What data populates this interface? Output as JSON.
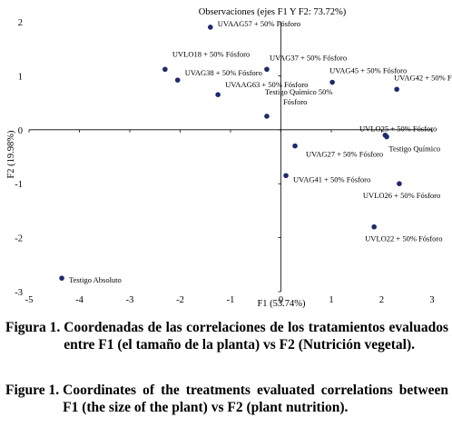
{
  "chart_data": {
    "type": "scatter",
    "title": "Observaciones (ejes F1 Y F2: 73.72%)",
    "xlabel": "F1 (53.74%)",
    "ylabel": "F2 (19.98%)",
    "xlim": [
      -5,
      3
    ],
    "ylim": [
      -3,
      2
    ],
    "xticks": [
      -5,
      -4,
      -3,
      -2,
      -1,
      0,
      1,
      2,
      3
    ],
    "yticks": [
      -3,
      -2,
      -1,
      0,
      1,
      2
    ],
    "xtick_labels": [
      "-5",
      "-4",
      "-3",
      "-2",
      "-1",
      "0",
      "1",
      "2",
      "3"
    ],
    "ytick_labels": [
      "-3",
      "-2",
      "-1",
      "0",
      "1",
      "2"
    ],
    "grid": false,
    "marker_color": "#1f2a6b",
    "points": [
      {
        "label": "UVAAG57 + 50% Fósforo",
        "x": -1.4,
        "y": 1.9
      },
      {
        "label": "UVLO18 + 50% Fósforo",
        "x": -2.3,
        "y": 1.12
      },
      {
        "label": "UVAG37 + 50% Fósforo",
        "x": -0.28,
        "y": 1.12
      },
      {
        "label": "UVAG38 + 50% Fósforo",
        "x": -2.05,
        "y": 0.92
      },
      {
        "label": "UVAAG63 + 50% Fósforo",
        "x": -1.25,
        "y": 0.65
      },
      {
        "label": "UVAG45 + 50% Fósforo",
        "x": 1.02,
        "y": 0.88
      },
      {
        "label": "UVAG42 + 50% Fósforo",
        "x": 2.3,
        "y": 0.75
      },
      {
        "label": "Testigo Químico 50% Fósforo",
        "x": -0.28,
        "y": 0.25
      },
      {
        "label": "UVLO25 + 50% Fósforo",
        "x": 2.1,
        "y": -0.13
      },
      {
        "label": "Testigo Químico",
        "x": 2.07,
        "y": -0.1
      },
      {
        "label": "UVAG27 + 50% Fósforo",
        "x": 0.28,
        "y": -0.3
      },
      {
        "label": "UVAG41 + 50% Fósforo",
        "x": 0.1,
        "y": -0.85
      },
      {
        "label": "UVLO26 + 50% Fósforo",
        "x": 2.35,
        "y": -1.0
      },
      {
        "label": "UVLO22 + 50% Fósforo",
        "x": 1.85,
        "y": -1.8
      },
      {
        "label": "Testigo Absoluto",
        "x": -4.35,
        "y": -2.75
      }
    ]
  },
  "captions": [
    {
      "label": "Figura 1.",
      "text": "Coordenadas de las correlaciones de los tratamientos evaluados entre F1 (el tamaño de la planta) vs F2 (Nutrición vegetal)."
    },
    {
      "label": "Figure 1.",
      "text": "Coordinates of the treatments evaluated correlations between F1 (the size of the plant) vs F2 (plant nutrition)."
    }
  ]
}
